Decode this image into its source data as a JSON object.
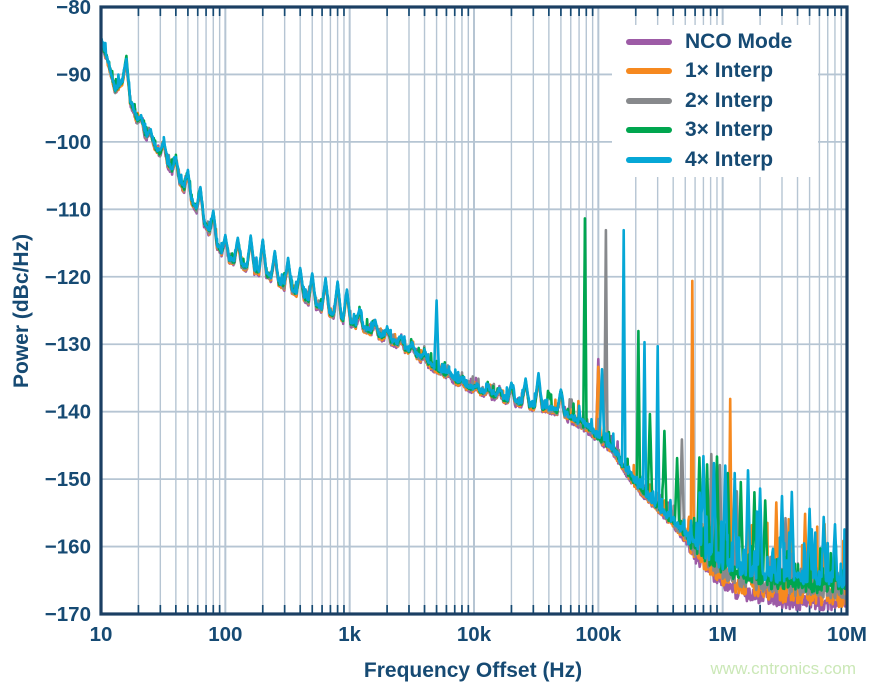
{
  "watermark": "www.cntronics.com",
  "chart_data": {
    "type": "line",
    "title": "",
    "xlabel": "Frequency Offset (Hz)",
    "ylabel": "Power (dBc/Hz)",
    "x_scale": "log",
    "xlim": [
      10,
      10000000
    ],
    "ylim": [
      -170,
      -80
    ],
    "grid": "major-horizontal + log-minor-vertical",
    "legend_position": "top-right",
    "colors": {
      "text_navy": "#164a73",
      "axis_border": "#1b3f63",
      "gridline": "#b6c5d3",
      "watermark_green": "#cbe8b7"
    },
    "x_ticks": [
      {
        "value": 10,
        "label": "10"
      },
      {
        "value": 100,
        "label": "100"
      },
      {
        "value": 1000,
        "label": "1k"
      },
      {
        "value": 10000,
        "label": "10k"
      },
      {
        "value": 100000,
        "label": "100k"
      },
      {
        "value": 1000000,
        "label": "1M"
      },
      {
        "value": 10000000,
        "label": "10M"
      }
    ],
    "y_ticks": [
      {
        "value": -80,
        "label": "−80"
      },
      {
        "value": -90,
        "label": "−90"
      },
      {
        "value": -100,
        "label": "−100"
      },
      {
        "value": -110,
        "label": "−110"
      },
      {
        "value": -120,
        "label": "−120"
      },
      {
        "value": -130,
        "label": "−130"
      },
      {
        "value": -140,
        "label": "−140"
      },
      {
        "value": -150,
        "label": "−150"
      },
      {
        "value": -160,
        "label": "−160"
      },
      {
        "value": -170,
        "label": "−170"
      }
    ],
    "baseline_dB": [
      [
        10,
        -85
      ],
      [
        11.5,
        -88.5
      ],
      [
        13,
        -92.5
      ],
      [
        15,
        -91
      ],
      [
        16,
        -92.8
      ],
      [
        18,
        -95
      ],
      [
        20,
        -97.5
      ],
      [
        25,
        -100
      ],
      [
        32,
        -102.5
      ],
      [
        40,
        -105
      ],
      [
        50,
        -108
      ],
      [
        63,
        -111
      ],
      [
        80,
        -114.5
      ],
      [
        100,
        -117.3
      ],
      [
        140,
        -118.5
      ],
      [
        200,
        -119.5
      ],
      [
        300,
        -121.5
      ],
      [
        400,
        -122.8
      ],
      [
        500,
        -124
      ],
      [
        700,
        -125.5
      ],
      [
        1000,
        -126.8
      ],
      [
        1400,
        -128
      ],
      [
        2000,
        -129.3
      ],
      [
        3000,
        -131
      ],
      [
        4000,
        -132.5
      ],
      [
        5000,
        -133.8
      ],
      [
        6500,
        -135
      ],
      [
        8000,
        -136
      ],
      [
        9500,
        -136.6
      ],
      [
        12000,
        -137.3
      ],
      [
        16000,
        -138
      ],
      [
        22000,
        -138.7
      ],
      [
        30000,
        -139.3
      ],
      [
        45000,
        -139.9
      ],
      [
        60000,
        -141
      ],
      [
        80000,
        -142.3
      ],
      [
        100000,
        -143.8
      ],
      [
        130000,
        -145.5
      ],
      [
        160000,
        -148.3
      ],
      [
        200000,
        -150.7
      ],
      [
        250000,
        -152.7
      ],
      [
        300000,
        -154.2
      ],
      [
        400000,
        -156.5
      ],
      [
        500000,
        -158.3
      ],
      [
        650000,
        -160.2
      ],
      [
        800000,
        -161.5
      ],
      [
        1000000,
        -162.6
      ],
      [
        1300000,
        -163.4
      ],
      [
        1700000,
        -164
      ],
      [
        2500000,
        -164.6
      ],
      [
        4000000,
        -165
      ],
      [
        6000000,
        -165.2
      ],
      [
        10000000,
        -165.5
      ]
    ],
    "common_spikes": [
      [
        16,
        -88
      ],
      [
        21,
        -96.3
      ],
      [
        25,
        -98.5
      ],
      [
        32,
        -100
      ],
      [
        40,
        -102.5
      ],
      [
        50,
        -104.5
      ],
      [
        63,
        -107
      ],
      [
        80,
        -110.5
      ],
      [
        100,
        -114.2
      ],
      [
        126,
        -114.5
      ],
      [
        160,
        -114.2
      ],
      [
        200,
        -114.8
      ],
      [
        250,
        -116.5
      ],
      [
        320,
        -117.5
      ],
      [
        400,
        -119
      ],
      [
        500,
        -119.8
      ],
      [
        640,
        -120.5
      ],
      [
        800,
        -121
      ],
      [
        950,
        -122.2
      ],
      [
        1200,
        -125.2
      ],
      [
        1600,
        -126.8
      ],
      [
        2000,
        -127.8
      ],
      [
        2600,
        -129.2
      ],
      [
        3200,
        -130.2
      ],
      [
        4000,
        -131.6
      ],
      [
        6300,
        -134.2
      ],
      [
        8000,
        -135.4
      ],
      [
        10500,
        -136.3
      ],
      [
        13000,
        -136.5
      ],
      [
        16000,
        -136.8
      ],
      [
        20000,
        -136
      ],
      [
        26000,
        -135.4
      ],
      [
        33000,
        -134.9
      ],
      [
        50000,
        -137
      ]
    ],
    "series": [
      {
        "name": "NCO Mode",
        "color": "#9d5ba6",
        "seed": 11,
        "base_offset": -0.3,
        "floor_offset": -2.5,
        "floor_spike_scale": 0.35,
        "spikes": [
          [
            200,
            -114.3
          ],
          [
            500,
            -119.5
          ],
          [
            950,
            -121.9
          ],
          [
            100000,
            -131.9
          ]
        ]
      },
      {
        "name": "1× Interp",
        "color": "#f6891f",
        "seed": 22,
        "base_offset": -0.15,
        "floor_offset": -1.8,
        "floor_spike_scale": 1.6,
        "spikes": [
          [
            100,
            -113.8
          ],
          [
            400,
            -118.7
          ],
          [
            100000,
            -133.2
          ],
          [
            570000,
            -119.9
          ],
          [
            1150000,
            -136.3
          ],
          [
            1600000,
            -152.8
          ],
          [
            2700000,
            -151.5
          ],
          [
            3400000,
            -154
          ],
          [
            4600000,
            -153.2
          ],
          [
            6600000,
            -154.7
          ]
        ]
      },
      {
        "name": "2× Interp",
        "color": "#87898c",
        "seed": 33,
        "base_offset": 0,
        "floor_offset": -0.8,
        "floor_spike_scale": 0.8,
        "spikes": [
          [
            61000,
            -138.2
          ],
          [
            115000,
            -113.1
          ],
          [
            470000,
            -144
          ],
          [
            810000,
            -145.8
          ],
          [
            950000,
            -147.3
          ],
          [
            1300000,
            -151
          ],
          [
            3200000,
            -155
          ]
        ]
      },
      {
        "name": "3× Interp",
        "color": "#00a64f",
        "seed": 44,
        "base_offset": 0.15,
        "floor_offset": -0.3,
        "floor_spike_scale": 1.0,
        "spikes": [
          [
            16,
            -87.4
          ],
          [
            40000,
            -137.5
          ],
          [
            78000,
            -111.5
          ],
          [
            210000,
            -128.2
          ],
          [
            260000,
            -140.5
          ],
          [
            340000,
            -143
          ],
          [
            430000,
            -147
          ],
          [
            650000,
            -146.8
          ],
          [
            750000,
            -147.8
          ],
          [
            900000,
            -146.6
          ],
          [
            1100000,
            -149
          ],
          [
            1400000,
            -150.3
          ],
          [
            1800000,
            -151.8
          ],
          [
            2200000,
            -153
          ]
        ]
      },
      {
        "name": "4× Interp",
        "color": "#06a7d6",
        "seed": 55,
        "base_offset": 0.3,
        "floor_offset": 0.6,
        "floor_spike_scale": 1.3,
        "spikes": [
          [
            5000,
            -123.8
          ],
          [
            33000,
            -134.6
          ],
          [
            107000,
            -134
          ],
          [
            160000,
            -113.4
          ],
          [
            235000,
            -130
          ],
          [
            300000,
            -130.6
          ],
          [
            700000,
            -147.2
          ],
          [
            850000,
            -148.3
          ],
          [
            1050000,
            -148.8
          ],
          [
            1250000,
            -150
          ],
          [
            1600000,
            -149.6
          ],
          [
            2000000,
            -152.3
          ],
          [
            3000000,
            -153.4
          ],
          [
            3600000,
            -152.8
          ],
          [
            5000000,
            -155.3
          ],
          [
            6500000,
            -156.5
          ],
          [
            8000000,
            -157.6
          ]
        ]
      }
    ],
    "noise": {
      "band_amp": {
        "low": 0.35,
        "knee": 0.55,
        "floor": 1.1
      },
      "spike_prob": {
        "low": 0.2,
        "knee": 0.12,
        "floor": 0.32
      },
      "spike_gain": {
        "low": 1.6,
        "knee": 3.0,
        "floor": 6.5
      }
    }
  }
}
